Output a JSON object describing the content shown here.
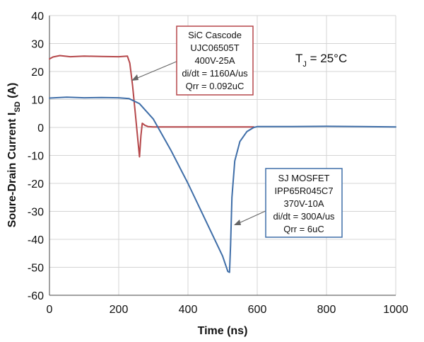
{
  "chart_data": {
    "type": "line",
    "xlabel": "Time (ns)",
    "ylabel": "Soure-Drain Current I",
    "ylabel_sub": "SD",
    "ylabel_unit": " (A)",
    "xlim": [
      0,
      1000
    ],
    "ylim": [
      -60,
      40
    ],
    "x_ticks": [
      0,
      200,
      400,
      600,
      800,
      1000
    ],
    "y_ticks": [
      40,
      30,
      20,
      10,
      0,
      -10,
      -20,
      -30,
      -40,
      -50,
      -60
    ],
    "grid": true,
    "annotation_tj": {
      "prefix": "T",
      "sub": "J",
      "suffix": " = 25°C"
    },
    "series": [
      {
        "color": "#b5474a",
        "x": [
          0,
          10,
          30,
          60,
          100,
          150,
          200,
          225,
          232,
          240,
          248,
          255,
          260,
          264,
          268,
          275,
          285,
          300,
          350,
          400,
          500,
          580,
          590
        ],
        "y": [
          24.5,
          25.2,
          25.7,
          25.3,
          25.5,
          25.4,
          25.3,
          25.5,
          23,
          15,
          5,
          -4,
          -10.5,
          -3,
          1.5,
          0.8,
          0.3,
          0.2,
          0.2,
          0.2,
          0.2,
          0.2,
          0.2
        ]
      },
      {
        "color": "#3f6ea8",
        "x": [
          0,
          50,
          100,
          150,
          200,
          230,
          260,
          300,
          350,
          400,
          450,
          500,
          515,
          520,
          523,
          527,
          535,
          550,
          570,
          590,
          600,
          700,
          800,
          900,
          1000
        ],
        "y": [
          10.5,
          10.8,
          10.6,
          10.7,
          10.6,
          10.3,
          8.5,
          3,
          -8,
          -20,
          -33,
          -46,
          -51.5,
          -51.8,
          -42,
          -25,
          -12,
          -5,
          -1.5,
          0,
          0.3,
          0.3,
          0.4,
          0.3,
          0.2
        ]
      }
    ],
    "annotations": [
      {
        "color": "#b5474a",
        "lines": [
          "SiC Cascode",
          "UJC06505T",
          "400V-25A",
          "di/dt = 1160A/us"
        ],
        "highlight": "Qrr = 0.092uC",
        "highlight_color": "#c0392b"
      },
      {
        "color": "#3f6ea8",
        "lines": [
          "SJ MOSFET",
          "IPP65R045C7",
          "370V-10A",
          "di/dt = 300A/us"
        ],
        "highlight": "Qrr = 6uC",
        "highlight_color": "#c0392b"
      }
    ]
  }
}
